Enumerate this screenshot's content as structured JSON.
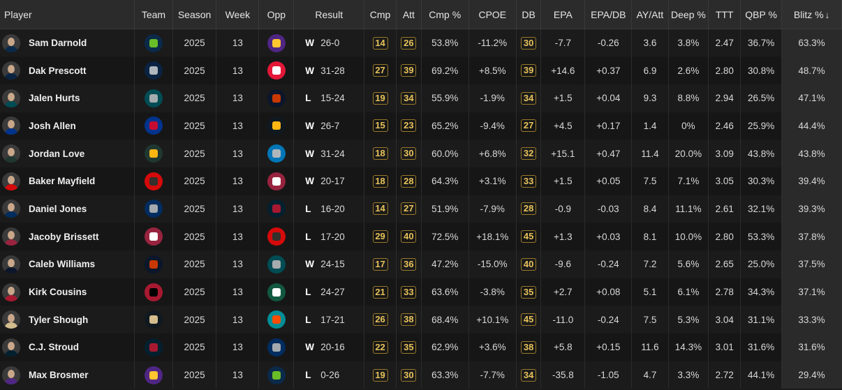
{
  "columns": [
    "Player",
    "Team",
    "Season",
    "Week",
    "Opp",
    "Result",
    "Cmp",
    "Att",
    "Cmp %",
    "CPOE",
    "DB",
    "EPA",
    "EPA/DB",
    "AY/Att",
    "Deep %",
    "TTT",
    "QBP %",
    "Blitz %"
  ],
  "sort_arrow": "↓",
  "rows": [
    {
      "player": "Sam Darnold",
      "team": "SEA",
      "team_color": "#0b2a4a",
      "team_accent": "#69be28",
      "season": "2025",
      "week": "13",
      "opp": "MIN",
      "opp_color": "#4f2683",
      "opp_accent": "#ffc62f",
      "wl": "W",
      "score": "26-0",
      "cmp": "14",
      "att": "26",
      "cmp_pct": "53.8%",
      "cpoe": "-11.2%",
      "db": "30",
      "epa": "-7.7",
      "epa_db": "-0.26",
      "ay_att": "3.6",
      "deep": "3.8%",
      "ttt": "2.47",
      "qbp": "36.7%",
      "blitz": "63.3%",
      "jersey": "#0b2a4a"
    },
    {
      "player": "Dak Prescott",
      "team": "DAL",
      "team_color": "#0a2342",
      "team_accent": "#b0b7bc",
      "season": "2025",
      "week": "13",
      "opp": "KC",
      "opp_color": "#e31837",
      "opp_accent": "#ffffff",
      "wl": "W",
      "score": "31-28",
      "cmp": "27",
      "att": "39",
      "cmp_pct": "69.2%",
      "cpoe": "+8.5%",
      "db": "39",
      "epa": "+14.6",
      "epa_db": "+0.37",
      "ay_att": "6.9",
      "deep": "2.6%",
      "ttt": "2.80",
      "qbp": "30.8%",
      "blitz": "48.7%",
      "jersey": "#0a2342"
    },
    {
      "player": "Jalen Hurts",
      "team": "PHI",
      "team_color": "#004c54",
      "team_accent": "#a5acaf",
      "season": "2025",
      "week": "13",
      "opp": "CHI",
      "opp_color": "#0b162a",
      "opp_accent": "#c83803",
      "wl": "L",
      "score": "15-24",
      "cmp": "19",
      "att": "34",
      "cmp_pct": "55.9%",
      "cpoe": "-1.9%",
      "db": "34",
      "epa": "+1.5",
      "epa_db": "+0.04",
      "ay_att": "9.3",
      "deep": "8.8%",
      "ttt": "2.94",
      "qbp": "26.5%",
      "blitz": "47.1%",
      "jersey": "#004c54"
    },
    {
      "player": "Josh Allen",
      "team": "BUF",
      "team_color": "#00338d",
      "team_accent": "#c60c30",
      "season": "2025",
      "week": "13",
      "opp": "PIT",
      "opp_color": "#101820",
      "opp_accent": "#ffb612",
      "wl": "W",
      "score": "26-7",
      "cmp": "15",
      "att": "23",
      "cmp_pct": "65.2%",
      "cpoe": "-9.4%",
      "db": "27",
      "epa": "+4.5",
      "epa_db": "+0.17",
      "ay_att": "1.4",
      "deep": "0%",
      "ttt": "2.46",
      "qbp": "25.9%",
      "blitz": "44.4%",
      "jersey": "#00338d"
    },
    {
      "player": "Jordan Love",
      "team": "GB",
      "team_color": "#203731",
      "team_accent": "#ffb612",
      "season": "2025",
      "week": "13",
      "opp": "DET",
      "opp_color": "#0076b6",
      "opp_accent": "#b0b7bc",
      "wl": "W",
      "score": "31-24",
      "cmp": "18",
      "att": "30",
      "cmp_pct": "60.0%",
      "cpoe": "+6.8%",
      "db": "32",
      "epa": "+15.1",
      "epa_db": "+0.47",
      "ay_att": "11.4",
      "deep": "20.0%",
      "ttt": "3.09",
      "qbp": "43.8%",
      "blitz": "43.8%",
      "jersey": "#203731"
    },
    {
      "player": "Baker Mayfield",
      "team": "TB",
      "team_color": "#d50a0a",
      "team_accent": "#34302b",
      "season": "2025",
      "week": "13",
      "opp": "ARI",
      "opp_color": "#97233f",
      "opp_accent": "#ffffff",
      "wl": "W",
      "score": "20-17",
      "cmp": "18",
      "att": "28",
      "cmp_pct": "64.3%",
      "cpoe": "+3.1%",
      "db": "33",
      "epa": "+1.5",
      "epa_db": "+0.05",
      "ay_att": "7.5",
      "deep": "7.1%",
      "ttt": "3.05",
      "qbp": "30.3%",
      "blitz": "39.4%",
      "jersey": "#d50a0a"
    },
    {
      "player": "Daniel Jones",
      "team": "IND",
      "team_color": "#002c5f",
      "team_accent": "#a2aaad",
      "season": "2025",
      "week": "13",
      "opp": "HOU",
      "opp_color": "#03202f",
      "opp_accent": "#a71930",
      "wl": "L",
      "score": "16-20",
      "cmp": "14",
      "att": "27",
      "cmp_pct": "51.9%",
      "cpoe": "-7.9%",
      "db": "28",
      "epa": "-0.9",
      "epa_db": "-0.03",
      "ay_att": "8.4",
      "deep": "11.1%",
      "ttt": "2.61",
      "qbp": "32.1%",
      "blitz": "39.3%",
      "jersey": "#002c5f"
    },
    {
      "player": "Jacoby Brissett",
      "team": "ARI",
      "team_color": "#97233f",
      "team_accent": "#ffffff",
      "season": "2025",
      "week": "13",
      "opp": "TB",
      "opp_color": "#d50a0a",
      "opp_accent": "#34302b",
      "wl": "L",
      "score": "17-20",
      "cmp": "29",
      "att": "40",
      "cmp_pct": "72.5%",
      "cpoe": "+18.1%",
      "db": "45",
      "epa": "+1.3",
      "epa_db": "+0.03",
      "ay_att": "8.1",
      "deep": "10.0%",
      "ttt": "2.80",
      "qbp": "53.3%",
      "blitz": "37.8%",
      "jersey": "#97233f"
    },
    {
      "player": "Caleb Williams",
      "team": "CHI",
      "team_color": "#0b162a",
      "team_accent": "#c83803",
      "season": "2025",
      "week": "13",
      "opp": "PHI",
      "opp_color": "#004c54",
      "opp_accent": "#a5acaf",
      "wl": "W",
      "score": "24-15",
      "cmp": "17",
      "att": "36",
      "cmp_pct": "47.2%",
      "cpoe": "-15.0%",
      "db": "40",
      "epa": "-9.6",
      "epa_db": "-0.24",
      "ay_att": "7.2",
      "deep": "5.6%",
      "ttt": "2.65",
      "qbp": "25.0%",
      "blitz": "37.5%",
      "jersey": "#0b162a"
    },
    {
      "player": "Kirk Cousins",
      "team": "ATL",
      "team_color": "#a71930",
      "team_accent": "#000000",
      "season": "2025",
      "week": "13",
      "opp": "NYJ",
      "opp_color": "#125740",
      "opp_accent": "#ffffff",
      "wl": "L",
      "score": "24-27",
      "cmp": "21",
      "att": "33",
      "cmp_pct": "63.6%",
      "cpoe": "-3.8%",
      "db": "35",
      "epa": "+2.7",
      "epa_db": "+0.08",
      "ay_att": "5.1",
      "deep": "6.1%",
      "ttt": "2.78",
      "qbp": "34.3%",
      "blitz": "37.1%",
      "jersey": "#a71930"
    },
    {
      "player": "Tyler Shough",
      "team": "NO",
      "team_color": "#101820",
      "team_accent": "#d3bc8d",
      "season": "2025",
      "week": "13",
      "opp": "MIA",
      "opp_color": "#008e97",
      "opp_accent": "#fc4c02",
      "wl": "L",
      "score": "17-21",
      "cmp": "26",
      "att": "38",
      "cmp_pct": "68.4%",
      "cpoe": "+10.1%",
      "db": "45",
      "epa": "-11.0",
      "epa_db": "-0.24",
      "ay_att": "7.5",
      "deep": "5.3%",
      "ttt": "3.04",
      "qbp": "31.1%",
      "blitz": "33.3%",
      "jersey": "#d3bc8d"
    },
    {
      "player": "C.J. Stroud",
      "team": "HOU",
      "team_color": "#03202f",
      "team_accent": "#a71930",
      "season": "2025",
      "week": "13",
      "opp": "IND",
      "opp_color": "#002c5f",
      "opp_accent": "#a2aaad",
      "wl": "W",
      "score": "20-16",
      "cmp": "22",
      "att": "35",
      "cmp_pct": "62.9%",
      "cpoe": "+3.6%",
      "db": "38",
      "epa": "+5.8",
      "epa_db": "+0.15",
      "ay_att": "11.6",
      "deep": "14.3%",
      "ttt": "3.01",
      "qbp": "31.6%",
      "blitz": "31.6%",
      "jersey": "#03202f"
    },
    {
      "player": "Max Brosmer",
      "team": "MIN",
      "team_color": "#4f2683",
      "team_accent": "#ffc62f",
      "season": "2025",
      "week": "13",
      "opp": "SEA",
      "opp_color": "#0b2a4a",
      "opp_accent": "#69be28",
      "wl": "L",
      "score": "0-26",
      "cmp": "19",
      "att": "30",
      "cmp_pct": "63.3%",
      "cpoe": "-7.7%",
      "db": "34",
      "epa": "-35.8",
      "epa_db": "-1.05",
      "ay_att": "4.7",
      "deep": "3.3%",
      "ttt": "2.72",
      "qbp": "44.1%",
      "blitz": "29.4%",
      "jersey": "#4f2683"
    }
  ]
}
